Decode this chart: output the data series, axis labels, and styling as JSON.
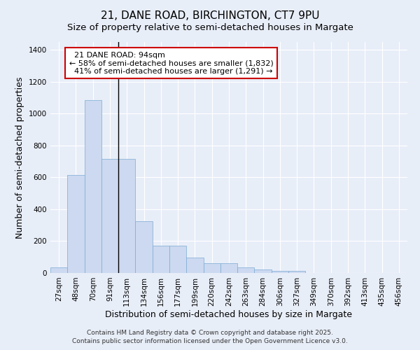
{
  "title": "21, DANE ROAD, BIRCHINGTON, CT7 9PU",
  "subtitle": "Size of property relative to semi-detached houses in Margate",
  "xlabel": "Distribution of semi-detached houses by size in Margate",
  "ylabel": "Number of semi-detached properties",
  "categories": [
    "27sqm",
    "48sqm",
    "70sqm",
    "91sqm",
    "113sqm",
    "134sqm",
    "156sqm",
    "177sqm",
    "199sqm",
    "220sqm",
    "242sqm",
    "263sqm",
    "284sqm",
    "306sqm",
    "327sqm",
    "349sqm",
    "370sqm",
    "392sqm",
    "413sqm",
    "435sqm",
    "456sqm"
  ],
  "values": [
    35,
    615,
    1085,
    715,
    715,
    325,
    170,
    170,
    95,
    60,
    60,
    35,
    20,
    15,
    15,
    0,
    0,
    0,
    0,
    0,
    0
  ],
  "bar_color": "#ccd9f0",
  "bar_edge_color": "#7baad4",
  "background_color": "#e8eef8",
  "grid_color": "#ffffff",
  "property_label": "21 DANE ROAD: 94sqm",
  "pct_smaller": 58,
  "pct_smaller_n": 1832,
  "pct_larger": 41,
  "pct_larger_n": 1291,
  "annotation_box_color": "#ffffff",
  "annotation_box_edge": "#cc0000",
  "vline_color": "#000000",
  "footer_line1": "Contains HM Land Registry data © Crown copyright and database right 2025.",
  "footer_line2": "Contains public sector information licensed under the Open Government Licence v3.0.",
  "ylim": [
    0,
    1450
  ],
  "title_fontsize": 11,
  "subtitle_fontsize": 9.5,
  "axis_label_fontsize": 9,
  "tick_fontsize": 7.5,
  "footer_fontsize": 6.5,
  "ann_fontsize": 8,
  "vline_x_index": 3.5
}
